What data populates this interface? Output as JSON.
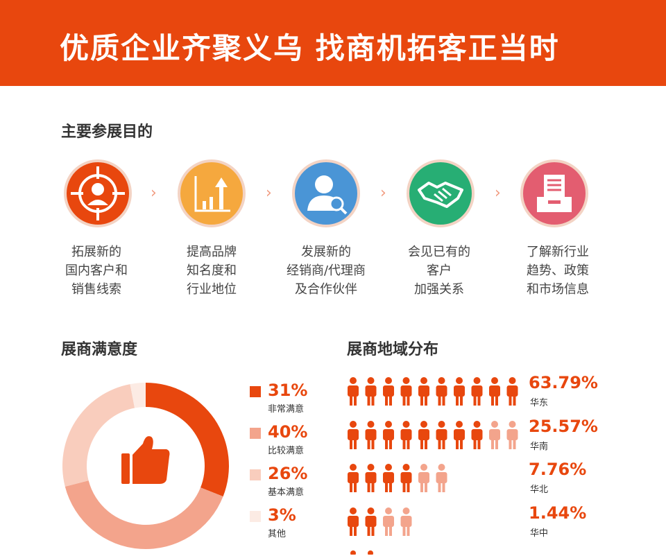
{
  "header": {
    "title": "优质企业齐聚义乌 找商机拓客正当时"
  },
  "purpose": {
    "title": "主要参展目的",
    "items": [
      {
        "icon": "target-customer-icon",
        "color": "#e8470e",
        "lines": [
          "拓展新的",
          "国内客户和",
          "销售线索"
        ]
      },
      {
        "icon": "growth-chart-icon",
        "color": "#f5a83e",
        "lines": [
          "提高品牌",
          "知名度和",
          "行业地位"
        ]
      },
      {
        "icon": "user-search-icon",
        "color": "#4a95d6",
        "lines": [
          "发展新的",
          "经销商/代理商",
          "及合作伙伴"
        ]
      },
      {
        "icon": "handshake-icon",
        "color": "#27ae74",
        "lines": [
          "会见已有的",
          "客户",
          "加强关系"
        ]
      },
      {
        "icon": "document-tray-icon",
        "color": "#e35d70",
        "lines": [
          "了解新行业",
          "趋势、政策",
          "和市场信息"
        ]
      }
    ]
  },
  "satisfaction": {
    "title": "展商满意度",
    "center_icon": "thumbs-up-icon"
  },
  "region": {
    "title": "展商地域分布"
  },
  "chart_data": [
    {
      "type": "pie",
      "title": "展商满意度",
      "donut": true,
      "slices": [
        {
          "pct": "31%",
          "value": 31,
          "label": "非常满意",
          "color": "#e8470e"
        },
        {
          "pct": "40%",
          "value": 40,
          "label": "比较满意",
          "color": "#f3a48c"
        },
        {
          "pct": "26%",
          "value": 26,
          "label": "基本满意",
          "color": "#f9cdbd"
        },
        {
          "pct": "3%",
          "value": 3,
          "label": "其他",
          "color": "#fcebe4"
        }
      ]
    },
    {
      "type": "bar",
      "title": "展商地域分布",
      "rows": [
        {
          "pct": "63.79%",
          "value": 63.79,
          "name": "华东",
          "dark": 10,
          "light": 0
        },
        {
          "pct": "25.57%",
          "value": 25.57,
          "name": "华南",
          "dark": 8,
          "light": 2
        },
        {
          "pct": "7.76%",
          "value": 7.76,
          "name": "华北",
          "dark": 4,
          "light": 2
        },
        {
          "pct": "1.44%",
          "value": 1.44,
          "name": "华中",
          "dark": 2,
          "light": 2
        }
      ],
      "colors": {
        "dark": "#e8470e",
        "light": "#f3a48c"
      }
    }
  ]
}
